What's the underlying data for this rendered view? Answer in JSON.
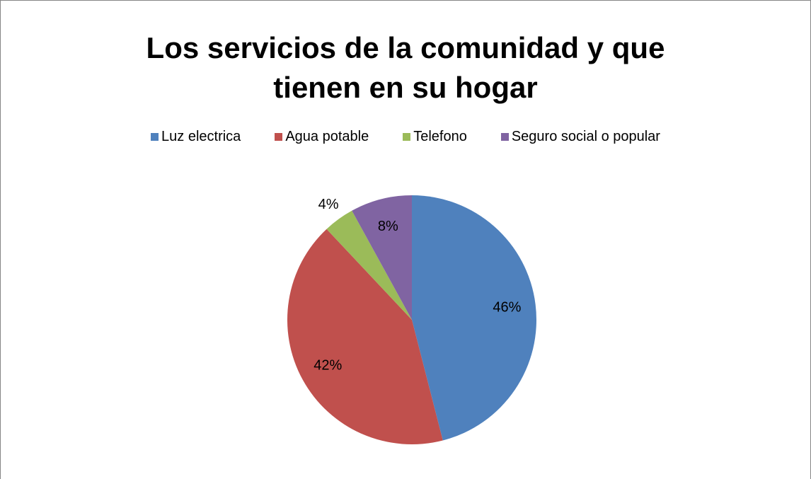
{
  "chart_data": {
    "type": "pie",
    "title": "Los servicios de la comunidad y que tienen en su hogar",
    "categories": [
      "Luz electrica",
      "Agua potable",
      "Telefono",
      "Seguro social o popular"
    ],
    "values": [
      46,
      42,
      4,
      8
    ],
    "value_labels": [
      "46%",
      "42%",
      "4%",
      "8%"
    ],
    "colors": [
      "#4f81bd",
      "#c0504d",
      "#9bbb59",
      "#8064a2"
    ],
    "legend": "top"
  }
}
